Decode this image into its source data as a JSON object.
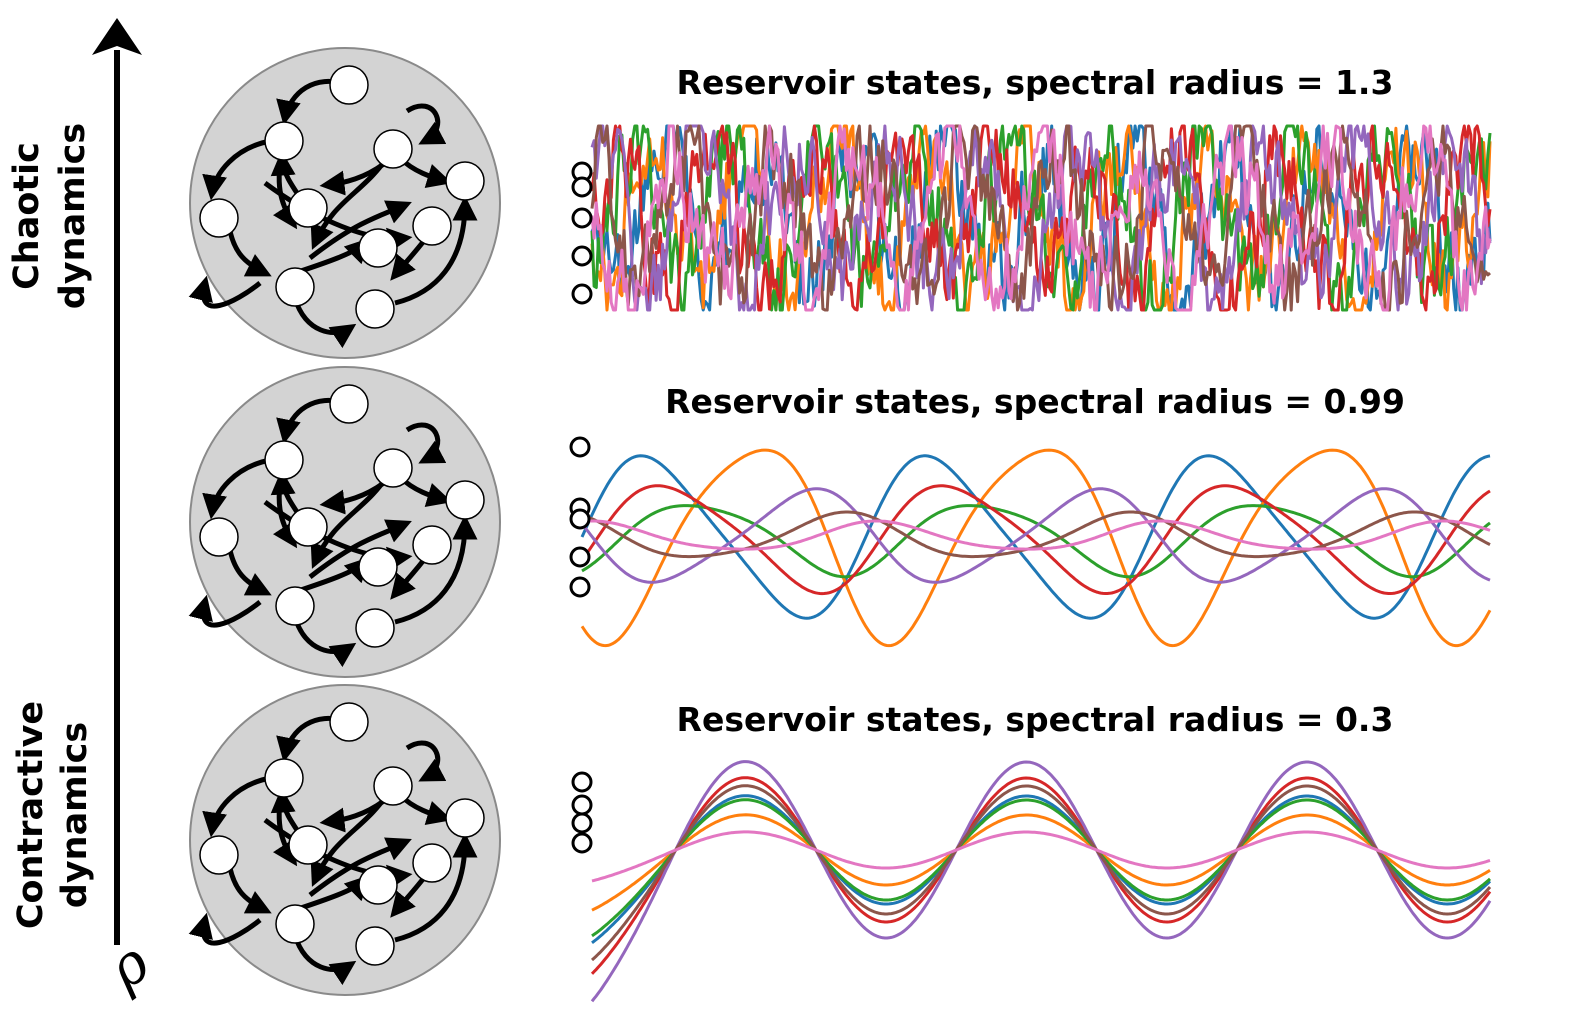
{
  "axis": {
    "symbol": "ρ",
    "top_label_line1": "Chaotic",
    "top_label_line2": "dynamics",
    "bottom_label_line1": "Contractive",
    "bottom_label_line2": "dynamics"
  },
  "colors": {
    "reservoir_fill": "#d3d3d3",
    "series": [
      "#1f77b4",
      "#ff7f0e",
      "#2ca02c",
      "#d62728",
      "#9467bd",
      "#8c564b",
      "#e377c2"
    ]
  },
  "panels": [
    {
      "title": "Reservoir states, spectral radius = 1.3",
      "spectral_radius": 1.3,
      "regime": "chaotic"
    },
    {
      "title": "Reservoir states, spectral radius = 0.99",
      "spectral_radius": 0.99,
      "regime": "oscillatory"
    },
    {
      "title": "Reservoir states, spectral radius = 0.3",
      "spectral_radius": 0.3,
      "regime": "contractive"
    }
  ]
}
